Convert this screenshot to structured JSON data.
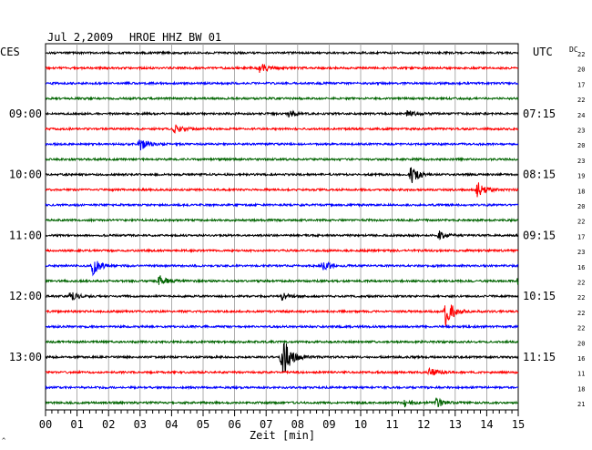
{
  "header": {
    "date": "Jul 2,2009",
    "station": "HROE HHZ BW 01",
    "left_tz": "CES",
    "right_tz": "UTC",
    "dc_label": "DC"
  },
  "chart_data": {
    "type": "line",
    "title": "Jul 2,2009   HROE HHZ BW 01",
    "xlabel": "Zeit [min]",
    "xlim": [
      0,
      15
    ],
    "x_ticks": [
      "00",
      "01",
      "02",
      "03",
      "04",
      "05",
      "06",
      "07",
      "08",
      "09",
      "10",
      "11",
      "12",
      "13",
      "14",
      "15"
    ],
    "grid": true,
    "trace_colors": [
      "#000000",
      "#ff0000",
      "#0000ff",
      "#006400"
    ],
    "left_time_labels": [
      {
        "row": 4,
        "text": "09:00"
      },
      {
        "row": 8,
        "text": "10:00"
      },
      {
        "row": 12,
        "text": "11:00"
      },
      {
        "row": 16,
        "text": "12:00"
      },
      {
        "row": 20,
        "text": "13:00"
      }
    ],
    "right_time_labels": [
      {
        "row": 4,
        "text": "07:15"
      },
      {
        "row": 8,
        "text": "08:15"
      },
      {
        "row": 12,
        "text": "09:15"
      },
      {
        "row": 16,
        "text": "10:15"
      },
      {
        "row": 20,
        "text": "11:15"
      }
    ],
    "dc_offsets": [
      22,
      20,
      17,
      22,
      24,
      23,
      20,
      23,
      19,
      18,
      20,
      22,
      17,
      23,
      16,
      22,
      22,
      22,
      22,
      20,
      16,
      11,
      18,
      21
    ],
    "events": [
      {
        "row": 1,
        "minute": 6.8,
        "amp": 1.8
      },
      {
        "row": 4,
        "minute": 7.7,
        "amp": 1.3
      },
      {
        "row": 4,
        "minute": 11.5,
        "amp": 1.2
      },
      {
        "row": 5,
        "minute": 4.1,
        "amp": 1.8
      },
      {
        "row": 6,
        "minute": 3.0,
        "amp": 2.4
      },
      {
        "row": 8,
        "minute": 11.6,
        "amp": 3.2
      },
      {
        "row": 9,
        "minute": 13.7,
        "amp": 2.8
      },
      {
        "row": 12,
        "minute": 12.5,
        "amp": 1.5
      },
      {
        "row": 14,
        "minute": 1.5,
        "amp": 3.0
      },
      {
        "row": 14,
        "minute": 8.8,
        "amp": 1.5
      },
      {
        "row": 15,
        "minute": 3.6,
        "amp": 2.2
      },
      {
        "row": 15,
        "minute": 15.0,
        "amp": 1.6
      },
      {
        "row": 16,
        "minute": 0.8,
        "amp": 1.6
      },
      {
        "row": 16,
        "minute": 7.5,
        "amp": 1.5
      },
      {
        "row": 17,
        "minute": 12.7,
        "amp": 5.0
      },
      {
        "row": 20,
        "minute": 7.5,
        "amp": 9.0
      },
      {
        "row": 21,
        "minute": 12.2,
        "amp": 1.4
      },
      {
        "row": 23,
        "minute": 11.4,
        "amp": 1.5
      },
      {
        "row": 23,
        "minute": 12.4,
        "amp": 1.7
      }
    ]
  }
}
